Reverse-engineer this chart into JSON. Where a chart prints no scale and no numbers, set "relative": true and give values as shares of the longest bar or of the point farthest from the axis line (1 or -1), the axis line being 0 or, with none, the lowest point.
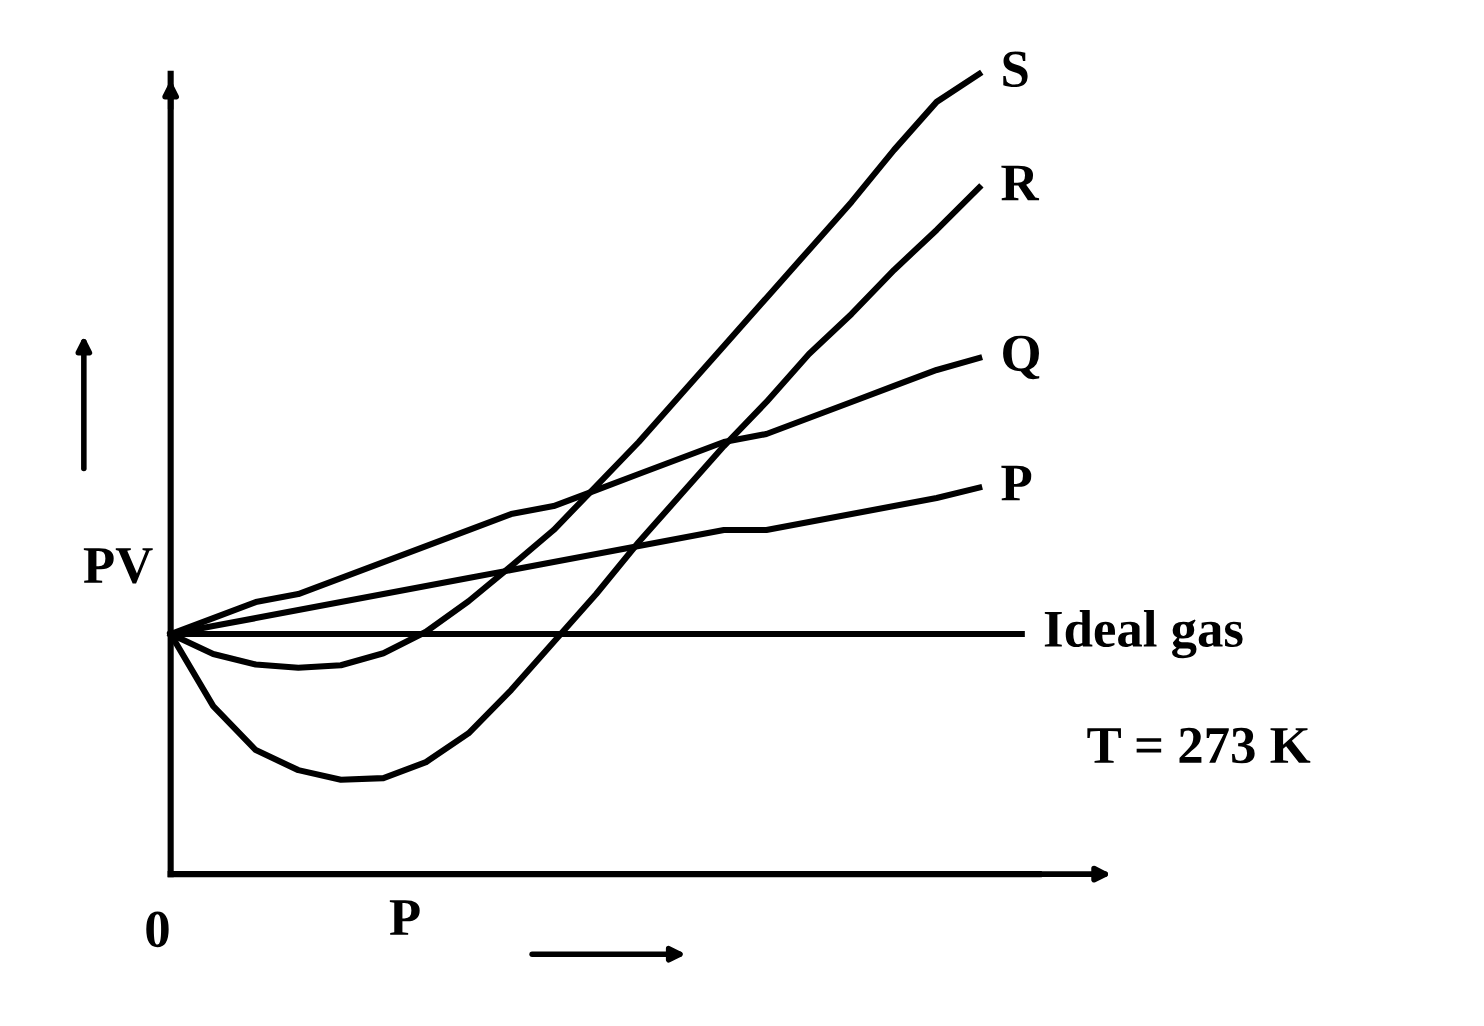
{
  "chart_data": {
    "type": "line",
    "relative": true,
    "xlabel": "P",
    "ylabel": "PV",
    "legend": false,
    "marker": "none",
    "line_style": "solid",
    "annotations": [
      "0",
      "T = 273 K"
    ],
    "categories": [
      null,
      null,
      null,
      null,
      null,
      null,
      null,
      null,
      null,
      null,
      null,
      null,
      null,
      null,
      null,
      null,
      null,
      null,
      null,
      null,
      null
    ],
    "series": [
      {
        "name": "S",
        "color": "#000000",
        "values": [
          0.3,
          0.275,
          0.262,
          0.258,
          0.261,
          0.276,
          0.303,
          0.341,
          0.385,
          0.43,
          0.485,
          0.54,
          0.6,
          0.66,
          0.72,
          0.78,
          0.84,
          0.905,
          0.965,
          1.0,
          null
        ]
      },
      {
        "name": "R",
        "color": "#000000",
        "values": [
          0.3,
          0.21,
          0.155,
          0.13,
          0.118,
          0.12,
          0.14,
          0.176,
          0.23,
          0.29,
          0.35,
          0.415,
          0.475,
          0.535,
          0.59,
          0.65,
          0.7,
          0.755,
          0.805,
          0.858,
          null
        ]
      },
      {
        "name": "Q",
        "color": "#000000",
        "values": [
          0.3,
          0.32,
          0.34,
          0.35,
          0.37,
          0.39,
          0.41,
          0.43,
          0.45,
          0.46,
          0.48,
          0.5,
          0.52,
          0.54,
          0.55,
          0.57,
          0.59,
          0.61,
          0.63,
          0.645,
          null
        ]
      },
      {
        "name": "P",
        "color": "#000000",
        "values": [
          0.3,
          0.31,
          0.32,
          0.33,
          0.34,
          0.35,
          0.36,
          0.37,
          0.38,
          0.39,
          0.4,
          0.41,
          0.42,
          0.43,
          0.43,
          0.44,
          0.45,
          0.46,
          0.47,
          0.483,
          null
        ]
      },
      {
        "name": "Ideal gas",
        "color": "#000000",
        "values": [
          0.3,
          0.3,
          0.3,
          0.3,
          0.3,
          0.3,
          0.3,
          0.3,
          0.3,
          0.3,
          0.3,
          0.3,
          0.3,
          0.3,
          0.3,
          0.3,
          0.3,
          0.3,
          0.3,
          0.3,
          0.3
        ]
      }
    ]
  }
}
